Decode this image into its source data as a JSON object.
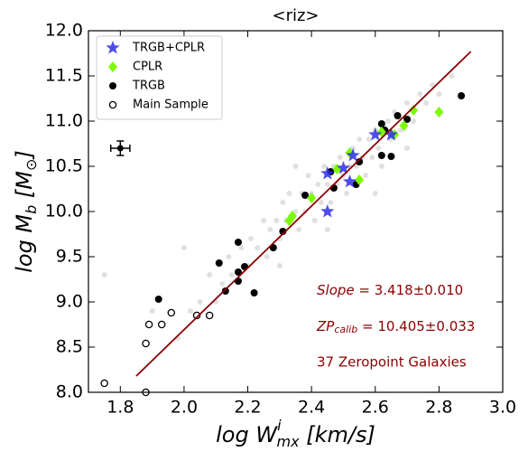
{
  "chart_data": {
    "type": "scatter",
    "title": "<riz>",
    "xlabel": {
      "text": "log W",
      "sub": "mx",
      "sup": "i",
      "unit": " [km/s]"
    },
    "ylabel": {
      "text": "log M",
      "sub": "b",
      "unit": " [M",
      "unit_sub": "⊙",
      "unit_end": "]"
    },
    "xlim": [
      1.7,
      3.0
    ],
    "ylim": [
      8.0,
      12.0
    ],
    "xticks": [
      1.8,
      {
        "value": 2,
        "label": "2.0"
      },
      2.2,
      2.4,
      2.6,
      2.8,
      {
        "value": 3,
        "label": "3.0"
      }
    ],
    "yticks": [
      {
        "value": 8,
        "label": "8.0"
      },
      8.5,
      {
        "value": 9,
        "label": "9.0"
      },
      9.5,
      {
        "value": 10,
        "label": "10.0"
      },
      10.5,
      {
        "value": 11,
        "label": "11.0"
      },
      11.5,
      {
        "value": 12,
        "label": "12.0"
      }
    ],
    "legend": "upper left",
    "series": [
      {
        "marker": "cloud",
        "color": "#000000",
        "x": [
          1.98,
          2.02,
          2.05,
          2.08,
          2.1,
          2.12,
          2.14,
          2.15,
          2.18,
          2.2,
          2.21,
          2.23,
          2.25,
          2.26,
          2.27,
          2.29,
          2.3,
          2.31,
          2.32,
          2.33,
          2.35,
          2.36,
          2.37,
          2.38,
          2.39,
          2.4,
          2.41,
          2.42,
          2.43,
          2.44,
          2.45,
          2.46,
          2.47,
          2.48,
          2.49,
          2.5,
          2.51,
          2.52,
          2.53,
          2.54,
          2.55,
          2.56,
          2.57,
          2.58,
          2.59,
          2.6,
          2.61,
          2.62,
          2.63,
          2.64,
          2.65,
          2.66,
          2.68,
          2.7,
          2.72,
          2.74,
          2.76,
          2.78,
          2.8,
          2.84,
          1.75,
          1.9,
          2.0,
          2.35,
          2.6,
          2.3,
          2.7,
          2.45
        ],
        "values": [
          8.6,
          8.9,
          9.0,
          9.3,
          9.0,
          9.2,
          9.5,
          9.3,
          9.6,
          9.4,
          9.7,
          9.6,
          9.9,
          9.5,
          9.8,
          9.9,
          9.7,
          10.1,
          9.9,
          10.2,
          10.0,
          9.8,
          10.2,
          10.0,
          10.4,
          10.2,
          9.9,
          10.3,
          10.1,
          10.5,
          10.3,
          10.1,
          10.5,
          10.3,
          10.6,
          10.4,
          10.2,
          10.5,
          10.7,
          10.5,
          10.8,
          10.6,
          10.4,
          10.8,
          10.6,
          10.9,
          10.7,
          10.5,
          10.9,
          11.0,
          10.8,
          11.1,
          10.9,
          11.2,
          11.0,
          11.3,
          11.2,
          11.4,
          11.3,
          11.5,
          9.3,
          8.9,
          9.6,
          10.5,
          10.2,
          9.4,
          10.7,
          9.8
        ]
      },
      {
        "name": "Main Sample",
        "marker": "open",
        "color": "#000000",
        "x": [
          1.75,
          1.88,
          1.89,
          1.93,
          1.96,
          2.04,
          2.08,
          1.88
        ],
        "values": [
          8.1,
          8.54,
          8.75,
          8.75,
          8.88,
          8.85,
          8.85,
          8.0
        ]
      },
      {
        "name": "TRGB",
        "marker": "circle",
        "color": "#000000",
        "x": [
          1.92,
          2.11,
          2.13,
          2.17,
          2.17,
          2.17,
          2.19,
          2.22,
          2.28,
          2.31,
          2.38,
          2.46,
          2.47,
          2.54,
          2.62,
          2.62,
          2.65,
          2.67,
          2.7,
          2.87,
          2.63,
          2.55
        ],
        "values": [
          9.03,
          9.43,
          9.12,
          9.66,
          9.33,
          9.23,
          9.39,
          9.1,
          9.6,
          9.78,
          10.18,
          10.44,
          10.26,
          10.3,
          10.62,
          10.97,
          10.61,
          11.06,
          11.02,
          11.28,
          10.9,
          10.55
        ]
      },
      {
        "name": "CPLR",
        "marker": "diamond",
        "color": "#7cfc00",
        "x": [
          2.33,
          2.34,
          2.4,
          2.48,
          2.52,
          2.55,
          2.62,
          2.66,
          2.69,
          2.72,
          2.8
        ],
        "values": [
          9.9,
          9.95,
          10.15,
          10.47,
          10.65,
          10.35,
          10.88,
          10.85,
          10.95,
          11.12,
          11.1
        ]
      },
      {
        "name": "TRGB+CPLR",
        "marker": "star",
        "color": "#2e2ee8",
        "x": [
          2.45,
          2.45,
          2.52,
          2.53,
          2.6,
          2.65,
          2.5
        ],
        "values": [
          10.42,
          10.0,
          10.33,
          10.62,
          10.85,
          10.85,
          10.48
        ]
      }
    ],
    "fit_line": {
      "color": "#8b0000",
      "x": [
        1.85,
        2.9
      ],
      "values": [
        8.18,
        11.77
      ]
    },
    "error_bar": {
      "x": 1.8,
      "values": 10.7,
      "xerr": 0.03,
      "yerr": 0.08
    },
    "annotations": {
      "color": "#8b0000",
      "slope": {
        "text": "Slope",
        "rest": " = 3.418±0.010"
      },
      "zp": {
        "text": "ZP",
        "sub": "calib",
        "rest": " = 10.405±0.033"
      },
      "count": "37 Zeropoint Galaxies"
    }
  }
}
